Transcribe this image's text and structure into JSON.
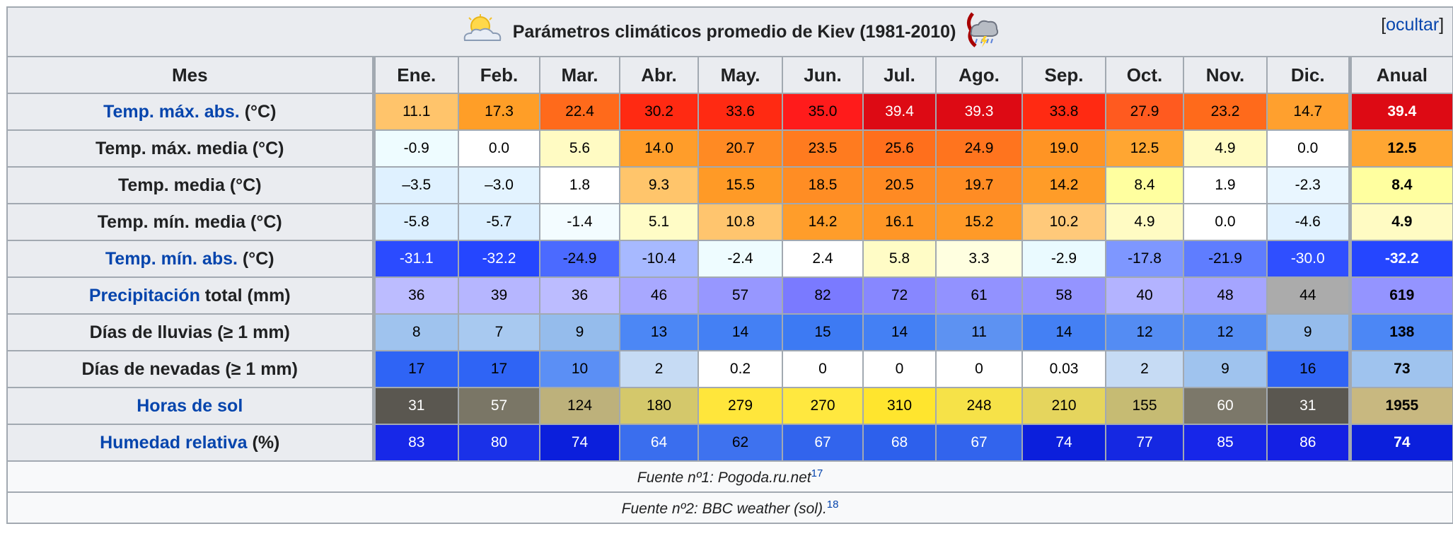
{
  "title": "Parámetros climáticos promedio de Kiev (1981-2010)",
  "hide_link": "ocultar",
  "header": {
    "first_col": "Mes",
    "months": [
      "Ene.",
      "Feb.",
      "Mar.",
      "Abr.",
      "May.",
      "Jun.",
      "Jul.",
      "Ago.",
      "Sep.",
      "Oct.",
      "Nov.",
      "Dic."
    ],
    "annual": "Anual"
  },
  "rows": [
    {
      "label_link": "Temp. máx. abs.",
      "label_rest": " (°C)",
      "values": [
        "11.1",
        "17.3",
        "22.4",
        "30.2",
        "33.6",
        "35.0",
        "39.4",
        "39.3",
        "33.8",
        "27.9",
        "23.2",
        "14.7"
      ],
      "annual": "39.4",
      "colors": [
        "#ffc46b",
        "#ff9e27",
        "#ff6a1b",
        "#ff2a12",
        "#ff2a12",
        "#ff1b1b",
        "#dd0a14",
        "#dd0a14",
        "#ff2a12",
        "#ff5a1f",
        "#ff6a1b",
        "#ffa02e"
      ],
      "annual_color": "#dd0a14",
      "text_colors": [
        "#000",
        "#000",
        "#000",
        "#000",
        "#000",
        "#000",
        "#fff",
        "#fff",
        "#000",
        "#000",
        "#000",
        "#000"
      ],
      "annual_text": "#fff"
    },
    {
      "label_link": "",
      "label_rest": "Temp. máx. media (°C)",
      "values": [
        "-0.9",
        "0.0",
        "5.6",
        "14.0",
        "20.7",
        "23.5",
        "25.6",
        "24.9",
        "19.0",
        "12.5",
        "4.9",
        "0.0"
      ],
      "annual": "12.5",
      "colors": [
        "#eefcff",
        "#ffffff",
        "#fffbc3",
        "#ff9d2a",
        "#ff8a23",
        "#ff7b1f",
        "#ff6f1c",
        "#ff741e",
        "#ff9424",
        "#ffa632",
        "#fffbc3",
        "#ffffff"
      ],
      "annual_color": "#ffa632",
      "text_colors": [
        "#000",
        "#000",
        "#000",
        "#000",
        "#000",
        "#000",
        "#000",
        "#000",
        "#000",
        "#000",
        "#000",
        "#000"
      ],
      "annual_text": "#000"
    },
    {
      "label_link": "",
      "label_rest": "Temp. media (°C)",
      "values": [
        "–3.5",
        "–3.0",
        "1.8",
        "9.3",
        "15.5",
        "18.5",
        "20.5",
        "19.7",
        "14.2",
        "8.4",
        "1.9",
        "-2.3"
      ],
      "annual": "8.4",
      "colors": [
        "#dff1ff",
        "#e3f3ff",
        "#ffffff",
        "#ffc56b",
        "#ff9a26",
        "#ff8d24",
        "#ff8a23",
        "#ff8c24",
        "#ff9c28",
        "#ffff9f",
        "#ffffff",
        "#e9f6ff"
      ],
      "annual_color": "#ffff9f",
      "text_colors": [
        "#000",
        "#000",
        "#000",
        "#000",
        "#000",
        "#000",
        "#000",
        "#000",
        "#000",
        "#000",
        "#000",
        "#000"
      ],
      "annual_text": "#000"
    },
    {
      "label_link": "",
      "label_rest": "Temp. mín. media (°C)",
      "values": [
        "-5.8",
        "-5.7",
        "-1.4",
        "5.1",
        "10.8",
        "14.2",
        "16.1",
        "15.2",
        "10.2",
        "4.9",
        "0.0",
        "-4.6"
      ],
      "annual": "4.9",
      "colors": [
        "#dbefff",
        "#dbefff",
        "#f3fcff",
        "#fffcc6",
        "#ffc56e",
        "#ff9d2a",
        "#ff9626",
        "#ff9a28",
        "#ffc97a",
        "#fffbc3",
        "#ffffff",
        "#e1f2ff"
      ],
      "annual_color": "#fffbc3",
      "text_colors": [
        "#000",
        "#000",
        "#000",
        "#000",
        "#000",
        "#000",
        "#000",
        "#000",
        "#000",
        "#000",
        "#000",
        "#000"
      ],
      "annual_text": "#000"
    },
    {
      "label_link": "Temp. mín. abs.",
      "label_rest": " (°C)",
      "values": [
        "-31.1",
        "-32.2",
        "-24.9",
        "-10.4",
        "-2.4",
        "2.4",
        "5.8",
        "3.3",
        "-2.9",
        "-17.8",
        "-21.9",
        "-30.0"
      ],
      "annual": "-32.2",
      "colors": [
        "#2b4bff",
        "#2546ff",
        "#4b6aff",
        "#a7b9ff",
        "#eefcff",
        "#ffffff",
        "#fffcc6",
        "#ffffe0",
        "#eafaff",
        "#7e97ff",
        "#5f7dff",
        "#2f4fff"
      ],
      "annual_color": "#2546ff",
      "text_colors": [
        "#fff",
        "#fff",
        "#000",
        "#000",
        "#000",
        "#000",
        "#000",
        "#000",
        "#000",
        "#000",
        "#000",
        "#fff"
      ],
      "annual_text": "#fff"
    },
    {
      "label_link": "Precipitación",
      "label_rest": " total (mm)",
      "values": [
        "36",
        "39",
        "36",
        "46",
        "57",
        "82",
        "72",
        "61",
        "58",
        "40",
        "48",
        "44"
      ],
      "annual": "619",
      "colors": [
        "#bcbcff",
        "#b6b6ff",
        "#bcbcff",
        "#a8a8ff",
        "#9797ff",
        "#7a7aff",
        "#8787ff",
        "#9292ff",
        "#9494ff",
        "#b3b3ff",
        "#a5a5ff",
        "#abababff"
      ],
      "annual_color": "#9494ff",
      "text_colors": [
        "#000",
        "#000",
        "#000",
        "#000",
        "#000",
        "#000",
        "#000",
        "#000",
        "#000",
        "#000",
        "#000",
        "#000"
      ],
      "annual_text": "#000"
    },
    {
      "label_link": "",
      "label_rest": "Días de lluvias (≥ 1 mm)",
      "values": [
        "8",
        "7",
        "9",
        "13",
        "14",
        "15",
        "14",
        "11",
        "14",
        "12",
        "12",
        "9"
      ],
      "annual": "138",
      "colors": [
        "#9fc3ee",
        "#a8c9f0",
        "#95bcec",
        "#4c87f5",
        "#4480f4",
        "#3d7af3",
        "#4480f4",
        "#5d92f2",
        "#4480f4",
        "#548cf3",
        "#548cf3",
        "#95bcec"
      ],
      "annual_color": "#4c87f5",
      "text_colors": [
        "#000",
        "#000",
        "#000",
        "#000",
        "#000",
        "#000",
        "#000",
        "#000",
        "#000",
        "#000",
        "#000",
        "#000"
      ],
      "annual_text": "#000"
    },
    {
      "label_link": "",
      "label_rest": "Días de nevadas (≥ 1 mm)",
      "values": [
        "17",
        "17",
        "10",
        "2",
        "0.2",
        "0",
        "0",
        "0",
        "0.03",
        "2",
        "9",
        "16"
      ],
      "annual": "73",
      "colors": [
        "#2f64f5",
        "#2f64f5",
        "#5b8ff5",
        "#c6dbf4",
        "#ffffff",
        "#ffffff",
        "#ffffff",
        "#ffffff",
        "#ffffff",
        "#c6dbf4",
        "#9fc3ee",
        "#2f64f5"
      ],
      "annual_color": "#9fc3ee",
      "text_colors": [
        "#000",
        "#000",
        "#000",
        "#000",
        "#000",
        "#000",
        "#000",
        "#000",
        "#000",
        "#000",
        "#000",
        "#000"
      ],
      "annual_text": "#000"
    },
    {
      "label_link": "Horas de sol",
      "label_rest": "",
      "values": [
        "31",
        "57",
        "124",
        "180",
        "279",
        "270",
        "310",
        "248",
        "210",
        "155",
        "60",
        "31"
      ],
      "annual": "1955",
      "colors": [
        "#5a5750",
        "#7a7666",
        "#bdb17b",
        "#d4c86b",
        "#ffe63b",
        "#ffe83f",
        "#ffe52e",
        "#f6e248",
        "#e5d55d",
        "#c6bb73",
        "#7c786a",
        "#5a5750"
      ],
      "annual_color": "#c8b880",
      "text_colors": [
        "#fff",
        "#fff",
        "#000",
        "#000",
        "#000",
        "#000",
        "#000",
        "#000",
        "#000",
        "#000",
        "#fff",
        "#fff"
      ],
      "annual_text": "#000"
    },
    {
      "label_link": "Humedad relativa",
      "label_rest": " (%)",
      "values": [
        "83",
        "80",
        "74",
        "64",
        "62",
        "67",
        "68",
        "67",
        "74",
        "77",
        "85",
        "86"
      ],
      "annual": "74",
      "colors": [
        "#1728e8",
        "#1a31e8",
        "#0b1fdc",
        "#3a6eee",
        "#3e72ef",
        "#3264ed",
        "#2d60ec",
        "#3264ed",
        "#0b1fdc",
        "#1528e2",
        "#1726e9",
        "#1420e4"
      ],
      "annual_color": "#0b1fdc",
      "text_colors": [
        "#fff",
        "#fff",
        "#fff",
        "#fff",
        "#000",
        "#fff",
        "#fff",
        "#fff",
        "#fff",
        "#fff",
        "#fff",
        "#fff"
      ],
      "annual_text": "#fff"
    }
  ],
  "sources": [
    {
      "text": "Fuente nº1: Pogoda.ru.net",
      "ref": "17"
    },
    {
      "text": "Fuente nº2: BBC weather (sol).",
      "ref": "18"
    }
  ]
}
